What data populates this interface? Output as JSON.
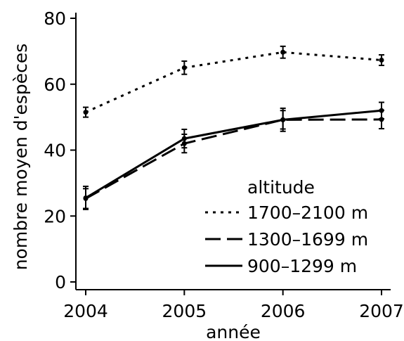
{
  "chart_data": {
    "type": "line",
    "xlabel": "année",
    "ylabel": "nombre moyen d'espèces",
    "x": [
      2004,
      2005,
      2006,
      2007
    ],
    "xlim": [
      2004,
      2007
    ],
    "ylim": [
      0,
      80
    ],
    "yticks": [
      0,
      20,
      40,
      60,
      80
    ],
    "grid": false,
    "legend": {
      "title": "altitude",
      "placement": "bottom-right"
    },
    "series": [
      {
        "name": "1700–2100 m",
        "linestyle": "dotted",
        "values": [
          51.5,
          65,
          69.7,
          67.3
        ],
        "errors": [
          1.5,
          2,
          1.8,
          1.6
        ]
      },
      {
        "name": "1300–1699 m",
        "linestyle": "dashed",
        "values": [
          25.3,
          42,
          49.2,
          49.3
        ],
        "errors": [
          3,
          2.8,
          2.8,
          2.8
        ]
      },
      {
        "name": "900–1299 m",
        "linestyle": "solid",
        "values": [
          25.5,
          43.5,
          49.2,
          52
        ],
        "errors": [
          3.5,
          2.8,
          3.5,
          2.5
        ]
      }
    ]
  }
}
